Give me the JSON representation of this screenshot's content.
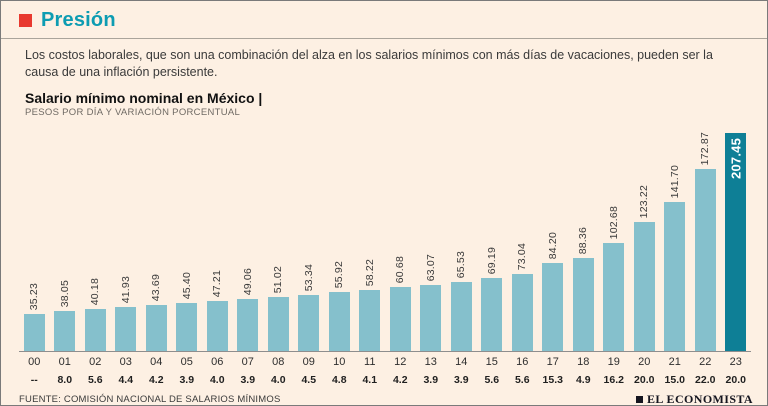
{
  "header": {
    "title": "Presión",
    "description": "Los costos laborales, que son una combinación del alza en los salarios mínimos con más días de vacaciones, pueden ser la causa de una inflación persistente."
  },
  "chart": {
    "title": "Salario mínimo nominal en México |",
    "subtitle": "PESOS POR DÍA Y VARIACIÓN PORCENTUAL"
  },
  "chart_data": {
    "type": "bar",
    "title": "Salario mínimo nominal en México",
    "xlabel": "",
    "ylabel": "Pesos por día",
    "categories": [
      "00",
      "01",
      "02",
      "03",
      "04",
      "05",
      "06",
      "07",
      "08",
      "09",
      "10",
      "11",
      "12",
      "13",
      "14",
      "15",
      "16",
      "17",
      "18",
      "19",
      "20",
      "21",
      "22",
      "23"
    ],
    "values": [
      35.23,
      38.05,
      40.18,
      41.93,
      43.69,
      45.4,
      47.21,
      49.06,
      51.02,
      53.34,
      55.92,
      58.22,
      60.68,
      63.07,
      65.53,
      69.19,
      73.04,
      84.2,
      88.36,
      102.68,
      123.22,
      141.7,
      172.87,
      207.45
    ],
    "value_labels": [
      "35.23",
      "38.05",
      "40.18",
      "41.93",
      "43.69",
      "45.40",
      "47.21",
      "49.06",
      "51.02",
      "53.34",
      "55.92",
      "58.22",
      "60.68",
      "63.07",
      "65.53",
      "69.19",
      "73.04",
      "84.20",
      "88.36",
      "102.68",
      "123.22",
      "141.70",
      "172.87",
      "207.45"
    ],
    "pct_change": [
      "--",
      "8.0",
      "5.6",
      "4.4",
      "4.2",
      "3.9",
      "4.0",
      "3.9",
      "4.0",
      "4.5",
      "4.8",
      "4.1",
      "4.2",
      "3.9",
      "3.9",
      "5.6",
      "5.6",
      "15.3",
      "4.9",
      "16.2",
      "20.0",
      "15.0",
      "22.0",
      "20.0"
    ],
    "ylim": [
      0,
      210
    ],
    "grid": false,
    "legend": "none",
    "highlight_index": 23,
    "bar_color": "#85c0cc",
    "highlight_color": "#0e7f96"
  },
  "footer": {
    "source": "FUENTE: COMISIÓN NACIONAL DE SALARIOS MÍNIMOS",
    "brand": "EL ECONOMISTA"
  },
  "colors": {
    "background": "#fdf0e3",
    "title_teal": "#0d9cb2",
    "accent_red": "#e8392f",
    "border": "#7a7a7a",
    "bar": "#85c0cc",
    "bar_highlight": "#0e7f96"
  }
}
